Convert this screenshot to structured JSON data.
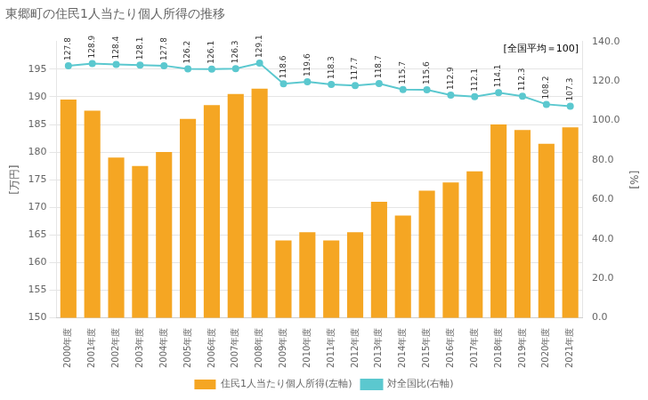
{
  "chart_data": {
    "type": "bar",
    "title": "東郷町の住民1人当たり個人所得の推移",
    "ylabel": "[万円]",
    "y2label": "[%]",
    "annotations": [
      "[全国平均＝100]"
    ],
    "categories": [
      "2000年度",
      "2001年度",
      "2002年度",
      "2003年度",
      "2004年度",
      "2005年度",
      "2006年度",
      "2007年度",
      "2008年度",
      "2009年度",
      "2010年度",
      "2011年度",
      "2012年度",
      "2013年度",
      "2014年度",
      "2015年度",
      "2016年度",
      "2017年度",
      "2018年度",
      "2019年度",
      "2020年度",
      "2021年度"
    ],
    "series": [
      {
        "name": "住民1人当たり個人所得(左軸)",
        "type": "bar",
        "color": "#F5A623",
        "values": [
          189.5,
          187.5,
          179.0,
          177.5,
          180.0,
          186.0,
          188.5,
          190.5,
          191.5,
          164.0,
          165.5,
          164.0,
          165.5,
          171.0,
          168.5,
          173.0,
          174.5,
          176.5,
          185.0,
          184.0,
          181.5,
          184.5
        ]
      },
      {
        "name": "対全国比(右軸)",
        "type": "line",
        "axis": "y2",
        "color": "#5BC8CF",
        "marker": "o",
        "data_labels": true,
        "values": [
          127.8,
          128.9,
          128.4,
          128.1,
          127.8,
          126.2,
          126.1,
          126.3,
          129.1,
          118.6,
          119.6,
          118.3,
          117.7,
          118.7,
          115.7,
          115.6,
          112.9,
          112.1,
          114.1,
          112.3,
          108.2,
          107.3
        ]
      }
    ],
    "ylim": [
      150,
      200
    ],
    "yticks": [
      150,
      155,
      160,
      165,
      170,
      175,
      180,
      185,
      190,
      195
    ],
    "y2lim": [
      0,
      140
    ],
    "y2ticks": [
      {
        "value": 0,
        "label": "0.0"
      },
      {
        "value": 20,
        "label": "20.0"
      },
      {
        "value": 40,
        "label": "40.0"
      },
      {
        "value": 60,
        "label": "60.0"
      },
      {
        "value": 80,
        "label": "80.0"
      },
      {
        "value": 100,
        "label": "100.0"
      },
      {
        "value": 120,
        "label": "120.0"
      },
      {
        "value": 140,
        "label": "140.0"
      }
    ],
    "grid": "y",
    "legend": "bottom"
  }
}
